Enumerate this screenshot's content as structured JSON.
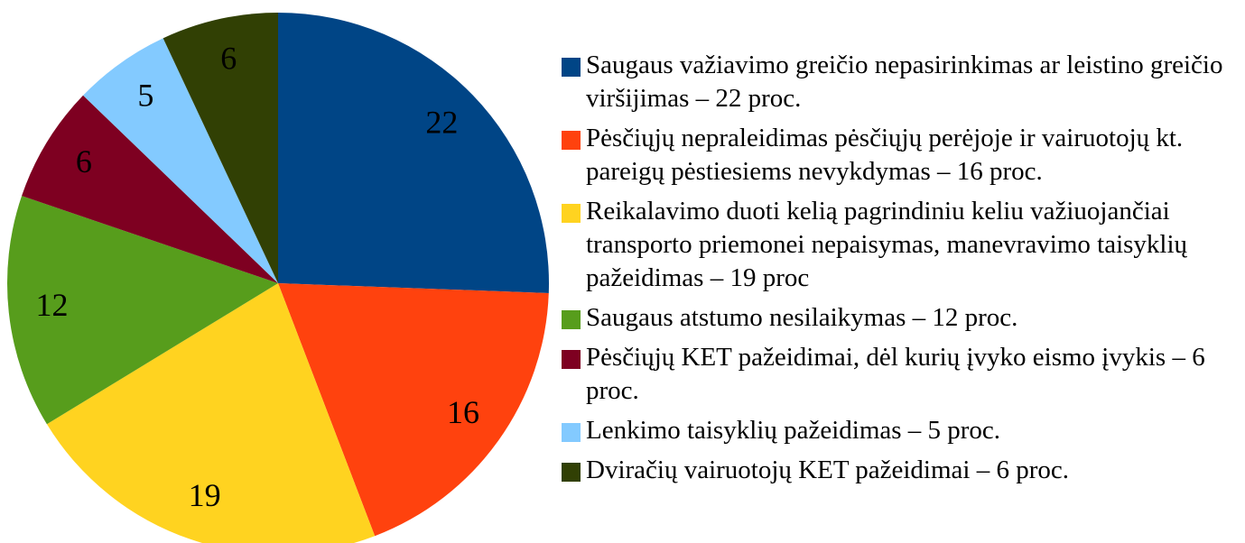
{
  "chart_data": {
    "type": "pie",
    "series": [
      {
        "name": "Saugaus važiavimo greičio nepasirinkimas ar leistino greičio viršijimas – 22 proc.",
        "color": "#004586",
        "values": [
          22
        ]
      },
      {
        "name": "Pėsčiųjų nepraleidimas pėsčiųjų perėjoje ir vairuotojų kt. pareigų pėstiesiems nevykdymas – 16 proc.",
        "color": "#ff420e",
        "values": [
          16
        ]
      },
      {
        "name": "Reikalavimo duoti kelią pagrindiniu keliu važiuojančiai transporto priemonei nepaisymas, manevravimo taisyklių pažeidimas – 19 proc",
        "color": "#ffd320",
        "values": [
          19
        ]
      },
      {
        "name": "Saugaus atstumo nesilaikymas – 12 proc.",
        "color": "#579d1c",
        "values": [
          12
        ]
      },
      {
        "name": "Pėsčiųjų KET pažeidimai, dėl kurių įvyko eismo įvykis – 6 proc.",
        "color": "#7e0021",
        "values": [
          6
        ]
      },
      {
        "name": "Lenkimo taisyklių pažeidimas  – 5 proc.",
        "color": "#83caff",
        "values": [
          5
        ]
      },
      {
        "name": "Dviračių vairuotojų KET pažeidimai – 6 proc.",
        "color": "#314004",
        "values": [
          6
        ]
      }
    ]
  }
}
